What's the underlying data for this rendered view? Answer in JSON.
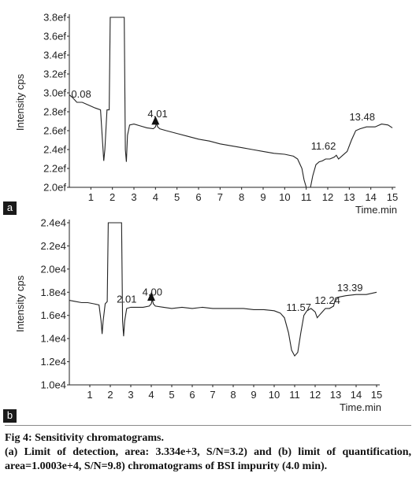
{
  "chart_data": [
    {
      "type": "line",
      "panel_label": "a",
      "ylabel": "Intensity cps",
      "xlabel": "Time.min",
      "xlim": [
        0,
        15
      ],
      "ylim": [
        2.0,
        3.8
      ],
      "x_ticks": [
        1,
        2,
        3,
        4,
        5,
        6,
        7,
        8,
        9,
        10,
        11,
        12,
        13,
        14,
        15
      ],
      "y_ticks": [
        2.0,
        2.2,
        2.4,
        2.6,
        2.8,
        3.0,
        3.2,
        3.4,
        3.6,
        3.8
      ],
      "y_tick_labels": [
        "2.0ef",
        "2.2ef",
        "2.4ef",
        "2.6ef",
        "2.8ef",
        "3.0ef",
        "3.2ef",
        "3.4ef",
        "3.6ef",
        "3.8ef"
      ],
      "grid": false,
      "series": [
        {
          "x": [
            0.0,
            0.15,
            0.35,
            0.6,
            0.9,
            1.2,
            1.45,
            1.55,
            1.6,
            1.65,
            1.75,
            1.85,
            1.9,
            2.55,
            2.6,
            2.65,
            2.7,
            2.8,
            3.0,
            3.3,
            3.6,
            3.9,
            4.0,
            4.05,
            4.1,
            4.2,
            4.5,
            5.0,
            5.5,
            6.0,
            6.5,
            7.0,
            7.5,
            8.0,
            8.5,
            9.0,
            9.5,
            10.0,
            10.4,
            10.6,
            10.8,
            10.9,
            11.0,
            11.1,
            11.2,
            11.3,
            11.45,
            11.6,
            11.75,
            11.9,
            12.1,
            12.3,
            12.4,
            12.5,
            12.7,
            12.9,
            13.1,
            13.3,
            13.5,
            13.8,
            14.2,
            14.5,
            14.8,
            15.0
          ],
          "y": [
            2.98,
            2.95,
            2.9,
            2.9,
            2.87,
            2.84,
            2.82,
            2.45,
            2.28,
            2.4,
            2.82,
            2.82,
            3.8,
            3.8,
            2.4,
            2.27,
            2.55,
            2.66,
            2.67,
            2.65,
            2.63,
            2.62,
            2.64,
            2.68,
            2.64,
            2.62,
            2.6,
            2.57,
            2.54,
            2.51,
            2.49,
            2.46,
            2.44,
            2.42,
            2.4,
            2.38,
            2.36,
            2.35,
            2.33,
            2.3,
            2.2,
            2.08,
            2.0,
            2.0,
            2.0,
            2.12,
            2.24,
            2.27,
            2.28,
            2.3,
            2.3,
            2.32,
            2.34,
            2.3,
            2.34,
            2.38,
            2.5,
            2.6,
            2.62,
            2.64,
            2.64,
            2.67,
            2.66,
            2.63
          ]
        }
      ],
      "annotations": [
        {
          "text": "0.08",
          "x": 0.55,
          "y": 2.95
        },
        {
          "text": "4.01",
          "x": 4.1,
          "y": 2.74
        },
        {
          "text": "11.62",
          "x": 11.8,
          "y": 2.4
        },
        {
          "text": "13.48",
          "x": 13.6,
          "y": 2.71
        }
      ],
      "filled_peaks": [
        {
          "x": 4.0,
          "y": 2.68
        }
      ]
    },
    {
      "type": "line",
      "panel_label": "b",
      "ylabel": "Intensity cps",
      "xlabel": "Time.min",
      "xlim": [
        0,
        15
      ],
      "ylim": [
        1.0,
        2.4
      ],
      "x_ticks": [
        1,
        2,
        3,
        4,
        5,
        6,
        7,
        8,
        9,
        10,
        11,
        12,
        13,
        14,
        15
      ],
      "y_ticks": [
        1.0,
        1.2,
        1.4,
        1.6,
        1.8,
        2.0,
        2.2,
        2.4
      ],
      "y_tick_labels": [
        "1.0e4",
        "1.2e4",
        "1.4e4",
        "1.6e4",
        "1.8e4",
        "2.0e4",
        "2.2e4",
        "2.4e4"
      ],
      "grid": false,
      "series": [
        {
          "x": [
            0.0,
            0.3,
            0.6,
            0.9,
            1.2,
            1.45,
            1.55,
            1.6,
            1.65,
            1.75,
            1.85,
            1.9,
            2.55,
            2.6,
            2.65,
            2.7,
            2.8,
            3.0,
            3.3,
            3.6,
            3.9,
            4.0,
            4.05,
            4.1,
            4.2,
            4.6,
            5.0,
            5.5,
            6.0,
            6.5,
            7.0,
            7.5,
            8.0,
            8.5,
            9.0,
            9.5,
            10.0,
            10.3,
            10.5,
            10.7,
            10.85,
            11.0,
            11.15,
            11.3,
            11.45,
            11.6,
            11.8,
            12.0,
            12.1,
            12.2,
            12.3,
            12.5,
            12.7,
            12.9,
            13.0,
            13.2,
            13.5,
            14.0,
            14.5,
            15.0
          ],
          "y": [
            1.73,
            1.72,
            1.71,
            1.71,
            1.7,
            1.69,
            1.55,
            1.44,
            1.55,
            1.7,
            1.72,
            2.4,
            2.4,
            1.55,
            1.42,
            1.55,
            1.66,
            1.67,
            1.67,
            1.67,
            1.68,
            1.7,
            1.74,
            1.7,
            1.68,
            1.67,
            1.66,
            1.67,
            1.66,
            1.67,
            1.66,
            1.66,
            1.66,
            1.66,
            1.65,
            1.65,
            1.64,
            1.62,
            1.58,
            1.45,
            1.3,
            1.25,
            1.28,
            1.45,
            1.6,
            1.64,
            1.66,
            1.63,
            1.58,
            1.6,
            1.62,
            1.66,
            1.66,
            1.68,
            1.75,
            1.76,
            1.77,
            1.78,
            1.78,
            1.8
          ]
        }
      ],
      "annotations": [
        {
          "text": "2.01",
          "x": 2.8,
          "y": 1.71
        },
        {
          "text": "4.00",
          "x": 4.05,
          "y": 1.77
        },
        {
          "text": "11.57",
          "x": 11.2,
          "y": 1.64
        },
        {
          "text": "12.24",
          "x": 12.6,
          "y": 1.7
        },
        {
          "text": "13.39",
          "x": 13.7,
          "y": 1.81
        }
      ],
      "filled_peaks": [
        {
          "x": 4.0,
          "y": 1.74
        }
      ]
    }
  ],
  "caption": {
    "title": "Fig 4: Sensitivity chromatograms.",
    "text": "(a) Limit of detection, area: 3.334e+3, S/N=3.2) and (b) limit of quantification, area=1.0003e+4, S/N=9.8) chromatograms of BSI impurity (4.0 min)."
  }
}
